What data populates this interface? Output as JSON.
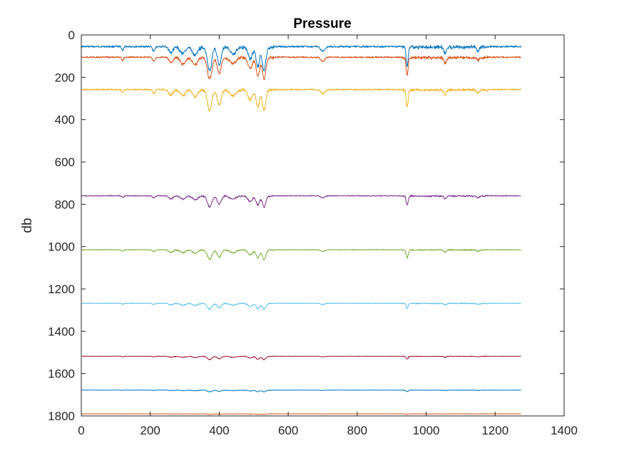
{
  "chart_data": {
    "type": "line",
    "title": "Pressure",
    "xlabel": "",
    "ylabel": "db",
    "xlim": [
      0,
      1400
    ],
    "ylim": [
      0,
      1800
    ],
    "y_reversed": true,
    "xticks": [
      "0",
      "200",
      "400",
      "600",
      "800",
      "1000",
      "1200",
      "1400"
    ],
    "yticks": [
      "0",
      "200",
      "400",
      "600",
      "800",
      "1000",
      "1200",
      "1400",
      "1600",
      "1800"
    ],
    "grid": false,
    "legend": "none",
    "x_end": 1275,
    "dips": [
      {
        "x": 120,
        "w": 4,
        "a": 0.15
      },
      {
        "x": 210,
        "w": 5,
        "a": 0.2
      },
      {
        "x": 260,
        "w": 8,
        "a": 0.25
      },
      {
        "x": 295,
        "w": 10,
        "a": 0.3
      },
      {
        "x": 330,
        "w": 10,
        "a": 0.35
      },
      {
        "x": 372,
        "w": 9,
        "a": 1.0
      },
      {
        "x": 400,
        "w": 8,
        "a": 0.75
      },
      {
        "x": 440,
        "w": 12,
        "a": 0.3
      },
      {
        "x": 490,
        "w": 9,
        "a": 0.5
      },
      {
        "x": 512,
        "w": 7,
        "a": 0.85
      },
      {
        "x": 530,
        "w": 7,
        "a": 1.0
      },
      {
        "x": 700,
        "w": 8,
        "a": 0.2
      },
      {
        "x": 945,
        "w": 4,
        "a": 0.85
      },
      {
        "x": 1055,
        "w": 5,
        "a": 0.25
      },
      {
        "x": 1150,
        "w": 5,
        "a": 0.15
      }
    ],
    "series": [
      {
        "baseline": 55,
        "depth": 110,
        "noise": 8,
        "color": "#0072BD"
      },
      {
        "baseline": 105,
        "depth": 100,
        "noise": 7,
        "color": "#D95319"
      },
      {
        "baseline": 258,
        "depth": 95,
        "noise": 6,
        "color": "#EDB120"
      },
      {
        "baseline": 760,
        "depth": 50,
        "noise": 4,
        "color": "#7E2F8E"
      },
      {
        "baseline": 1015,
        "depth": 45,
        "noise": 3,
        "color": "#77AC30"
      },
      {
        "baseline": 1268,
        "depth": 28,
        "noise": 2,
        "color": "#4DBEEE"
      },
      {
        "baseline": 1518,
        "depth": 16,
        "noise": 1.5,
        "color": "#A2142F"
      },
      {
        "baseline": 1678,
        "depth": 8,
        "noise": 1,
        "color": "#0072BD"
      },
      {
        "baseline": 1790,
        "depth": 3,
        "noise": 0.5,
        "color": "#D95319"
      }
    ]
  }
}
